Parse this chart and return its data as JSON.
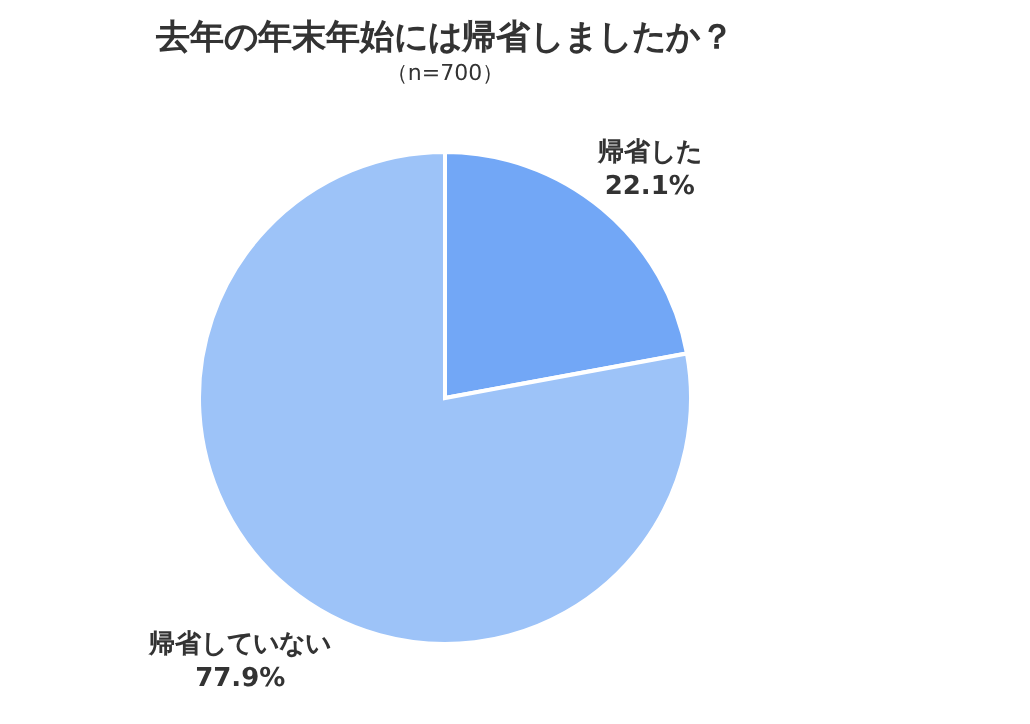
{
  "chart_data": {
    "type": "pie",
    "title": "去年の年末年始には帰省しましたか？",
    "subtitle": "（n=700）",
    "categories": [
      "帰省した",
      "帰省していない"
    ],
    "values": [
      22.1,
      77.9
    ],
    "colors": [
      "#72a7f6",
      "#9dc3f8"
    ],
    "value_labels": [
      "22.1%",
      "77.9%"
    ],
    "legend": false
  }
}
